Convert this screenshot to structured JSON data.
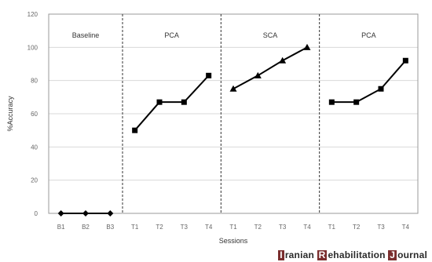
{
  "chart_data": {
    "type": "line",
    "ylabel": "%Accuracy",
    "xlabel": "Sessions",
    "ylim": [
      0,
      120
    ],
    "yticks": [
      0,
      20,
      40,
      60,
      80,
      100,
      120
    ],
    "grid": "horizontal",
    "categories": [
      "B1",
      "B2",
      "B3",
      "T1",
      "T2",
      "T3",
      "T4",
      "T1",
      "T2",
      "T3",
      "T4",
      "T1",
      "T2",
      "T3",
      "T4"
    ],
    "phases": [
      {
        "label": "Baseline",
        "start": 0,
        "end": 2,
        "marker": "diamond",
        "values": [
          0,
          0,
          0
        ]
      },
      {
        "label": "PCA",
        "start": 3,
        "end": 6,
        "marker": "square",
        "values": [
          50,
          67,
          67,
          83
        ]
      },
      {
        "label": "SCA",
        "start": 7,
        "end": 10,
        "marker": "triangle",
        "values": [
          75,
          83,
          92,
          100
        ]
      },
      {
        "label": "PCA",
        "start": 11,
        "end": 14,
        "marker": "square",
        "values": [
          67,
          67,
          75,
          92
        ]
      }
    ]
  },
  "brand": {
    "I": "I",
    "ranian": "ranian ",
    "R": "R",
    "ehab": "ehabilitation ",
    "J": "J",
    "ournal": "ournal"
  }
}
